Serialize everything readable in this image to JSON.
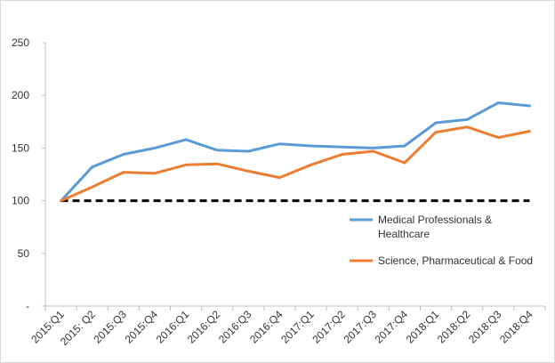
{
  "chart_data": {
    "type": "line",
    "title": "",
    "xlabel": "",
    "ylabel": "",
    "categories": [
      "2015:Q1",
      "2015: Q2",
      "2015:Q3",
      "2015:Q4",
      "2016:Q1",
      "2016:Q2",
      "2016:Q3",
      "2016:Q4",
      "2017:Q1",
      "2017:Q2",
      "2017:Q3",
      "2017:Q4",
      "2018:Q1",
      "2018:Q2",
      "2018:Q3",
      "2018:Q4"
    ],
    "ylim": [
      0,
      250
    ],
    "yticks": [
      0,
      50,
      100,
      150,
      200,
      250
    ],
    "ytick_labels": [
      "-",
      "50",
      "100",
      "150",
      "200",
      "250"
    ],
    "grid": false,
    "legend_position": "right",
    "series": [
      {
        "name": "Medical Professionals & Healthcare",
        "legend_lines": [
          "Medical Professionals &",
          "Healthcare"
        ],
        "color": "#5B9BD5",
        "values": [
          100,
          132,
          144,
          150,
          158,
          148,
          147,
          154,
          152,
          151,
          150,
          152,
          174,
          177,
          193,
          190
        ]
      },
      {
        "name": "Science, Pharmaceutical & Food",
        "legend_lines": [
          "Science, Pharmaceutical & Food"
        ],
        "color": "#ED7D31",
        "values": [
          100,
          113,
          127,
          126,
          134,
          135,
          128,
          122,
          134,
          144,
          147,
          136,
          165,
          170,
          160,
          166
        ]
      }
    ],
    "reference_line": {
      "value": 100,
      "color": "#000000",
      "style": "dashed"
    }
  }
}
